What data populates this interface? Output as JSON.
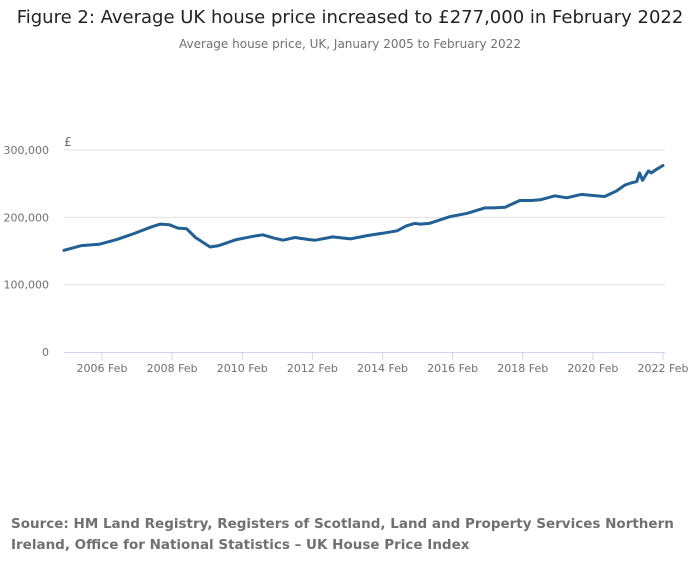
{
  "chart_data": {
    "type": "line",
    "title": "Figure 2: Average UK house price increased to £277,000 in February 2022",
    "subtitle": "Average house price, UK, January 2005 to February 2022",
    "ylabel": "£",
    "xlabel": "",
    "ylim": [
      0,
      300000
    ],
    "yticks": [
      0,
      100000,
      200000,
      300000
    ],
    "ytick_labels": [
      "0",
      "100,000",
      "200,000",
      "300,000"
    ],
    "xticks": [
      "2006 Feb",
      "2008 Feb",
      "2010 Feb",
      "2012 Feb",
      "2014 Feb",
      "2016 Feb",
      "2018 Feb",
      "2020 Feb",
      "2022 Feb"
    ],
    "x_start": "2005-01",
    "grid": true,
    "color": "#206095",
    "series": [
      {
        "name": "Average house price",
        "points": [
          [
            "2005-01",
            151000
          ],
          [
            "2005-07",
            158000
          ],
          [
            "2006-01",
            160000
          ],
          [
            "2006-07",
            167000
          ],
          [
            "2007-01",
            176000
          ],
          [
            "2007-07",
            186000
          ],
          [
            "2007-10",
            190000
          ],
          [
            "2008-01",
            189000
          ],
          [
            "2008-04",
            184000
          ],
          [
            "2008-07",
            183000
          ],
          [
            "2008-10",
            170000
          ],
          [
            "2009-03",
            156000
          ],
          [
            "2009-06",
            158000
          ],
          [
            "2009-12",
            167000
          ],
          [
            "2010-06",
            172000
          ],
          [
            "2010-09",
            174000
          ],
          [
            "2011-01",
            169000
          ],
          [
            "2011-04",
            166000
          ],
          [
            "2011-08",
            170000
          ],
          [
            "2012-01",
            167000
          ],
          [
            "2012-03",
            166000
          ],
          [
            "2012-09",
            171000
          ],
          [
            "2013-03",
            168000
          ],
          [
            "2013-09",
            173000
          ],
          [
            "2014-03",
            177000
          ],
          [
            "2014-07",
            180000
          ],
          [
            "2014-10",
            187000
          ],
          [
            "2015-01",
            191000
          ],
          [
            "2015-03",
            190000
          ],
          [
            "2015-06",
            191000
          ],
          [
            "2016-01",
            201000
          ],
          [
            "2016-07",
            206000
          ],
          [
            "2017-01",
            214000
          ],
          [
            "2017-04",
            214000
          ],
          [
            "2017-08",
            215000
          ],
          [
            "2018-01",
            225000
          ],
          [
            "2018-05",
            225000
          ],
          [
            "2018-08",
            226000
          ],
          [
            "2019-01",
            232000
          ],
          [
            "2019-05",
            229000
          ],
          [
            "2019-10",
            234000
          ],
          [
            "2020-03",
            232000
          ],
          [
            "2020-06",
            231000
          ],
          [
            "2020-10",
            239000
          ],
          [
            "2021-01",
            248000
          ],
          [
            "2021-03",
            251000
          ],
          [
            "2021-04",
            252000
          ],
          [
            "2021-05",
            253000
          ],
          [
            "2021-06",
            266000
          ],
          [
            "2021-07",
            255000
          ],
          [
            "2021-09",
            269000
          ],
          [
            "2021-10",
            266000
          ],
          [
            "2021-12",
            272000
          ],
          [
            "2022-02",
            277000
          ]
        ]
      }
    ]
  },
  "source": "Source: HM Land Registry, Registers of Scotland, Land and Property Services Northern Ireland, Office for National Statistics – UK House Price Index"
}
